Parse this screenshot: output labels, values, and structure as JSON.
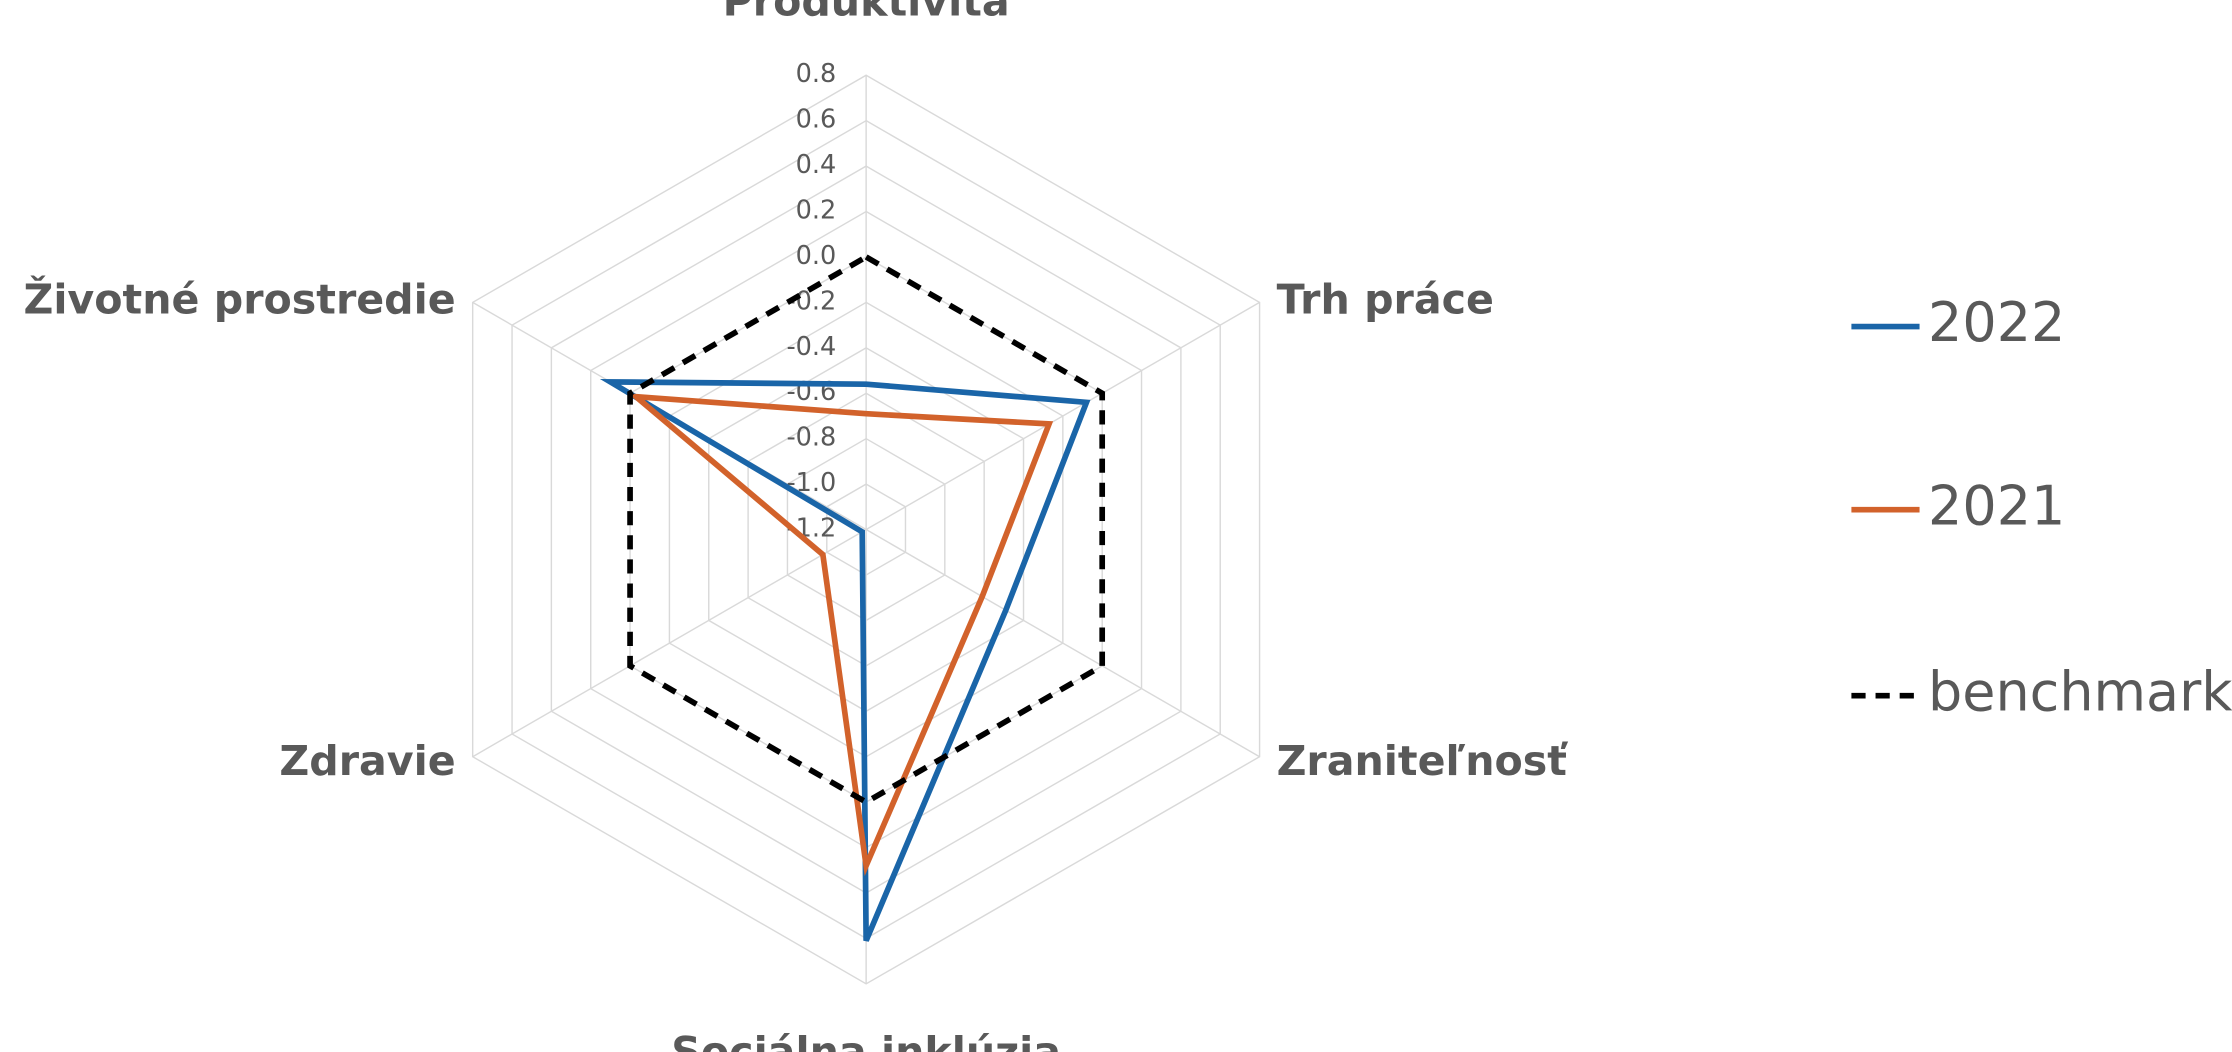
{
  "chart_data": {
    "type": "radar",
    "categories": [
      "Produktivita",
      "Trh práce",
      "Zraniteľnosť",
      "Sociálna inklúzia",
      "Zdravie",
      "Životné prostredie"
    ],
    "series": [
      {
        "name": "2022",
        "color": "#1a65a8",
        "values": [
          -0.56,
          -0.08,
          -0.49,
          0.61,
          -1.18,
          0.1
        ]
      },
      {
        "name": "2021",
        "color": "#d2622b",
        "values": [
          -0.69,
          -0.27,
          -0.61,
          0.28,
          -0.98,
          -0.03
        ]
      },
      {
        "name": "benchmark",
        "color": "#000000",
        "dashed": true,
        "values": [
          0,
          0,
          0,
          0,
          0,
          0
        ]
      }
    ],
    "rlim": [
      -1.2,
      0.8
    ],
    "rticks": [
      0.8,
      0.6,
      0.4,
      0.2,
      {
        "value": 0,
        "label": "0.0"
      },
      -0.2,
      -0.4,
      -0.6,
      -0.8,
      {
        "value": -1,
        "label": "-1.0"
      },
      -1.2
    ],
    "grid": true,
    "legend": "right"
  }
}
